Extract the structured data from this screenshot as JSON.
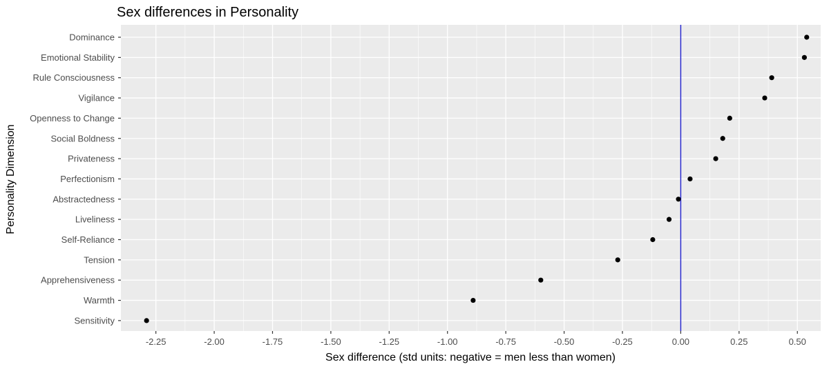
{
  "chart_data": {
    "type": "scatter",
    "title": "Sex differences in Personality",
    "xlabel": "Sex difference (std units: negative = men less than women)",
    "ylabel": "Personality Dimension",
    "xlim": [
      -2.4,
      0.6
    ],
    "x_ticks": [
      -2.25,
      -2.0,
      -1.75,
      -1.5,
      -1.25,
      -1.0,
      -0.75,
      -0.5,
      -0.25,
      0.0,
      0.25,
      0.5
    ],
    "x_tick_labels": [
      "-2.25",
      "-2.00",
      "-1.75",
      "-1.50",
      "-1.25",
      "-1.00",
      "-0.75",
      "-0.50",
      "-0.25",
      "0.00",
      "0.25",
      "0.50"
    ],
    "reference_line": {
      "x": 0.0,
      "color": "#2a2acf"
    },
    "point_color": "#000000",
    "panel_background": "#ebebeb",
    "grid": true,
    "categories": [
      "Dominance",
      "Emotional Stability",
      "Rule Consciousness",
      "Vigilance",
      "Openness to Change",
      "Social Boldness",
      "Privateness",
      "Perfectionism",
      "Abstractedness",
      "Liveliness",
      "Self-Reliance",
      "Tension",
      "Apprehensiveness",
      "Warmth",
      "Sensitivity"
    ],
    "values": [
      0.54,
      0.53,
      0.39,
      0.36,
      0.21,
      0.18,
      0.15,
      0.04,
      -0.01,
      -0.05,
      -0.12,
      -0.27,
      -0.6,
      -0.89,
      -2.29
    ]
  }
}
